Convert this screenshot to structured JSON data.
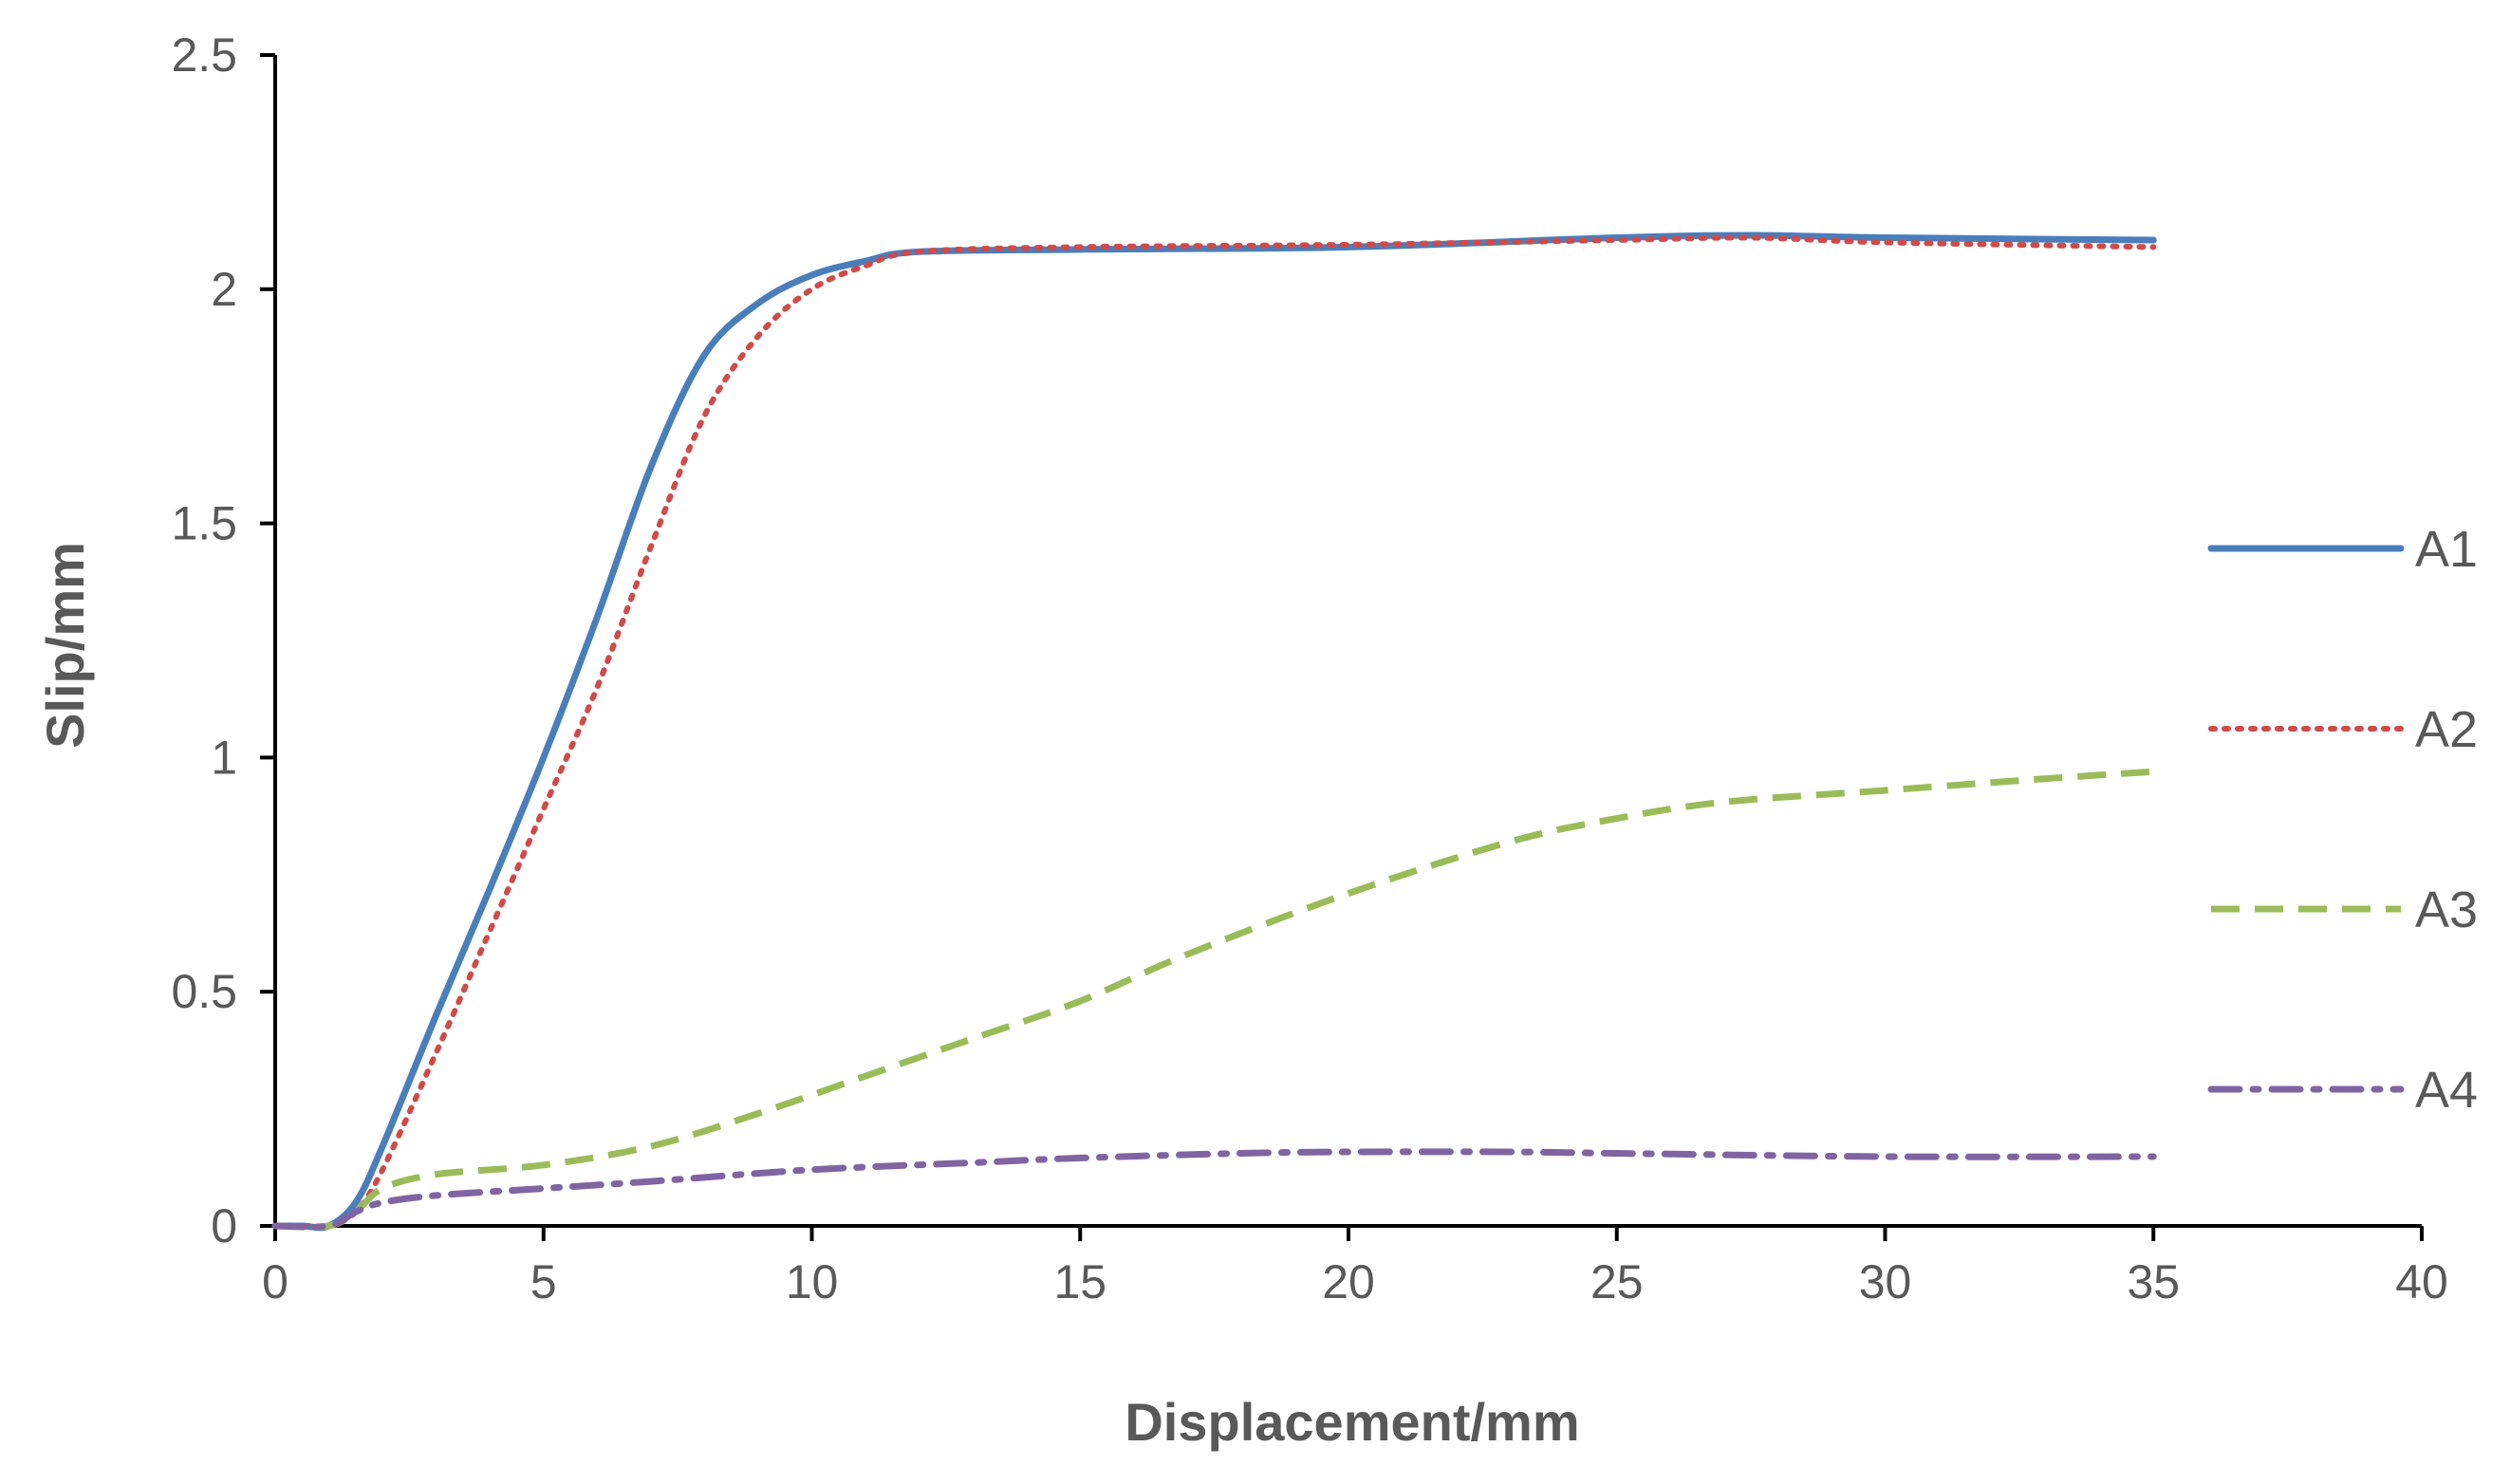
{
  "chart_data": {
    "type": "line",
    "title": "",
    "xlabel": "Displacement/mm",
    "ylabel": "Slip/mm",
    "xlim": [
      0,
      40
    ],
    "ylim": [
      0,
      2.5
    ],
    "xticks": [
      "0",
      "5",
      "10",
      "15",
      "20",
      "25",
      "30",
      "35",
      "40"
    ],
    "yticks": [
      "0",
      "0.5",
      "1",
      "1.5",
      "2",
      "2.5"
    ],
    "grid": false,
    "legend_position": "right",
    "series": [
      {
        "name": "A1",
        "color": "#4a7ebb",
        "style": "solid",
        "x": [
          0,
          0.5,
          1,
          1.5,
          2,
          3,
          4,
          5,
          6,
          7,
          8,
          9,
          10,
          11,
          12,
          15,
          20,
          25,
          27.5,
          30,
          35
        ],
        "y": [
          0,
          0,
          0,
          0.05,
          0.17,
          0.45,
          0.72,
          1.0,
          1.3,
          1.62,
          1.86,
          1.97,
          2.03,
          2.06,
          2.08,
          2.085,
          2.09,
          2.11,
          2.115,
          2.11,
          2.105
        ]
      },
      {
        "name": "A2",
        "color": "#d04a4a",
        "style": "dotted",
        "x": [
          0,
          0.5,
          1,
          1.5,
          2,
          3,
          4,
          5,
          6,
          7,
          8,
          9,
          10,
          11,
          12,
          15,
          20,
          25,
          27.5,
          30,
          35
        ],
        "y": [
          0,
          0,
          0,
          0.03,
          0.12,
          0.37,
          0.63,
          0.89,
          1.15,
          1.45,
          1.73,
          1.9,
          2.0,
          2.05,
          2.08,
          2.09,
          2.095,
          2.105,
          2.11,
          2.1,
          2.09
        ]
      },
      {
        "name": "A3",
        "color": "#9bbb59",
        "style": "dashed",
        "x": [
          0,
          1,
          1.5,
          2,
          3,
          5,
          7,
          9,
          11,
          13,
          15,
          17,
          20,
          23,
          25,
          27,
          30,
          33,
          35
        ],
        "y": [
          0,
          0,
          0.03,
          0.08,
          0.11,
          0.13,
          0.17,
          0.24,
          0.32,
          0.4,
          0.48,
          0.58,
          0.71,
          0.82,
          0.87,
          0.905,
          0.93,
          0.955,
          0.97
        ]
      },
      {
        "name": "A4",
        "color": "#8064a2",
        "style": "dashdot",
        "x": [
          0,
          1,
          1.5,
          2,
          3,
          5,
          7,
          10,
          13,
          15,
          18,
          20,
          23,
          25,
          30,
          35
        ],
        "y": [
          0,
          0,
          0.03,
          0.05,
          0.065,
          0.08,
          0.095,
          0.12,
          0.135,
          0.145,
          0.155,
          0.158,
          0.158,
          0.155,
          0.148,
          0.148
        ]
      }
    ]
  }
}
